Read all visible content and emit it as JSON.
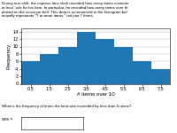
{
  "chart_data": {
    "type": "histogram",
    "annotations": [
      "During one shift, the express lane clerk recorded how many times custome\nor less\" rule for his lane. In particular, he recorded how many items over th\nplaced on the conveyor belt. This data is summarized in the histogram bel\nactually represents \"7 or more items,\" not just 7 items.",
      "What is the frequency of times the limit was exceeded by less than 6 items?",
      "ans ="
    ],
    "x_label": "# items over 10",
    "y_label": "Frequency",
    "bins": [
      0,
      1,
      2,
      3,
      4,
      5,
      6,
      7,
      8
    ],
    "values": [
      6,
      8,
      10,
      14,
      12,
      10,
      6,
      4
    ],
    "xlim": [
      0.0,
      8.0
    ],
    "xticks": [
      0.5,
      1.5,
      2.5,
      3.5,
      4.5,
      5.5,
      6.5,
      7.5
    ],
    "ylim": [
      0,
      15
    ],
    "yticks": [
      0,
      2,
      4,
      6,
      8,
      10,
      12,
      14
    ],
    "grid": true
  }
}
